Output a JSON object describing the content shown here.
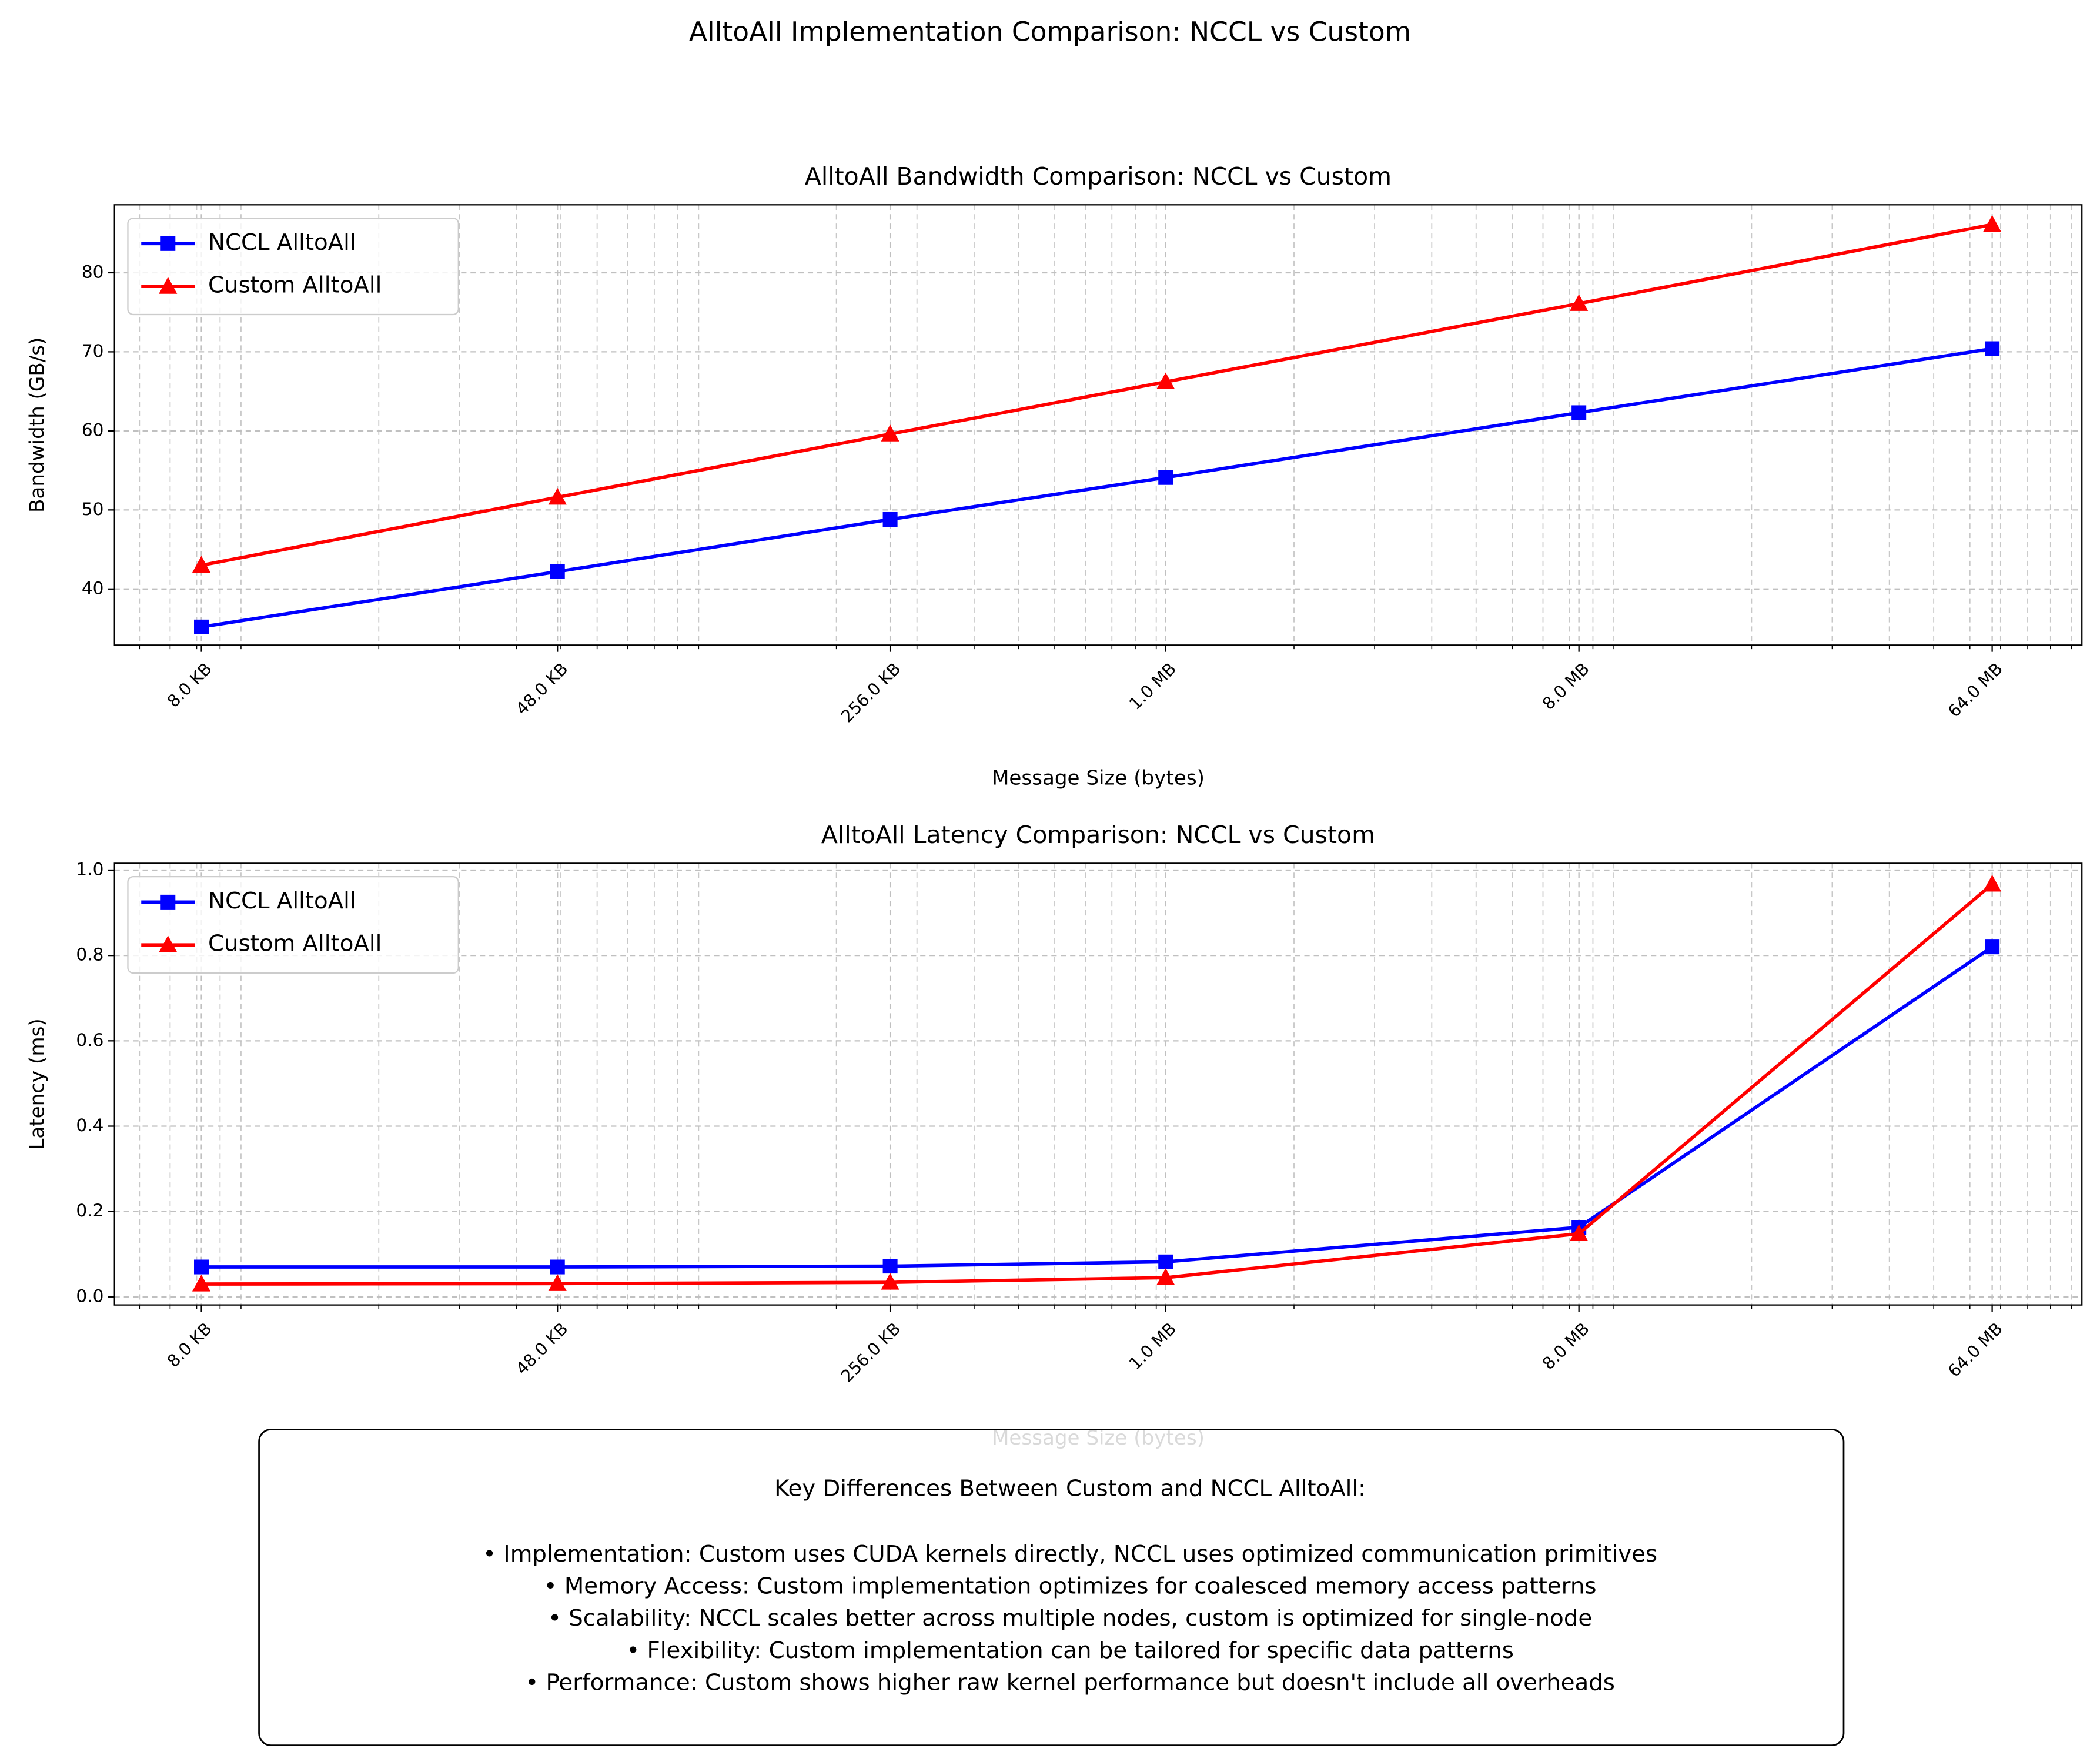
{
  "title": "AlltoAll Implementation Comparison: NCCL vs Custom",
  "chart_data": [
    {
      "type": "line",
      "title": "AlltoAll Bandwidth Comparison: NCCL vs Custom",
      "x": [
        8192,
        49152,
        262144,
        1048576,
        8388608,
        67108864
      ],
      "xlabel": "Message Size (bytes)",
      "ylabel": "Bandwidth (GB/s)",
      "xscale": "log",
      "xlim": [
        5290,
        105400000
      ],
      "xticks": [
        {
          "value": 8192,
          "label": "8.0 KB"
        },
        {
          "value": 49152,
          "label": "48.0 KB"
        },
        {
          "value": 262144,
          "label": "256.0 KB"
        },
        {
          "value": 1048576,
          "label": "1.0 MB"
        },
        {
          "value": 8388608,
          "label": "8.0 MB"
        },
        {
          "value": 67108864,
          "label": "64.0 MB"
        }
      ],
      "ylim": [
        32.9,
        88.6
      ],
      "yticks": [
        40,
        50,
        60,
        70,
        80
      ],
      "grid": true,
      "minor_grid": true,
      "legend": "upper left",
      "series": [
        {
          "name": "NCCL AlltoAll",
          "color": "#0000ff",
          "marker": "square",
          "values": [
            35.2,
            42.2,
            48.8,
            54.1,
            62.3,
            70.4
          ]
        },
        {
          "name": "Custom AlltoAll",
          "color": "#ff0000",
          "marker": "triangle",
          "values": [
            43.0,
            51.6,
            59.6,
            66.2,
            76.1,
            86.1
          ]
        }
      ]
    },
    {
      "type": "line",
      "title": "AlltoAll Latency Comparison: NCCL vs Custom",
      "x": [
        8192,
        49152,
        262144,
        1048576,
        8388608,
        67108864
      ],
      "xlabel": "Message Size (bytes)",
      "ylabel": "Latency (ms)",
      "xscale": "log",
      "xlim": [
        5290,
        105400000
      ],
      "xticks": [
        {
          "value": 8192,
          "label": "8.0 KB"
        },
        {
          "value": 49152,
          "label": "48.0 KB"
        },
        {
          "value": 262144,
          "label": "256.0 KB"
        },
        {
          "value": 1048576,
          "label": "1.0 MB"
        },
        {
          "value": 8388608,
          "label": "8.0 MB"
        },
        {
          "value": 67108864,
          "label": "64.0 MB"
        }
      ],
      "ylim": [
        -0.019,
        1.016
      ],
      "yticks": [
        {
          "value": 0,
          "label": "0.0"
        },
        0.2,
        0.4,
        0.6,
        0.8,
        {
          "value": 1,
          "label": "1.0"
        }
      ],
      "grid": true,
      "minor_grid": true,
      "legend": "upper left",
      "series": [
        {
          "name": "NCCL AlltoAll",
          "color": "#0000ff",
          "marker": "square",
          "values": [
            0.07,
            0.07,
            0.072,
            0.082,
            0.163,
            0.82
          ]
        },
        {
          "name": "Custom AlltoAll",
          "color": "#ff0000",
          "marker": "triangle",
          "values": [
            0.03,
            0.031,
            0.034,
            0.045,
            0.148,
            0.967
          ]
        }
      ]
    }
  ],
  "text_box": {
    "title": "Key Differences Between Custom and NCCL AlltoAll:",
    "items": [
      "• Implementation: Custom uses CUDA kernels directly, NCCL uses optimized communication primitives",
      "• Memory Access: Custom implementation optimizes for coalesced memory access patterns",
      "• Scalability: NCCL scales better across multiple nodes, custom is optimized for single-node",
      "• Flexibility: Custom implementation can be tailored for specific data patterns",
      "• Performance: Custom shows higher raw kernel performance but doesn't include all overheads"
    ]
  }
}
